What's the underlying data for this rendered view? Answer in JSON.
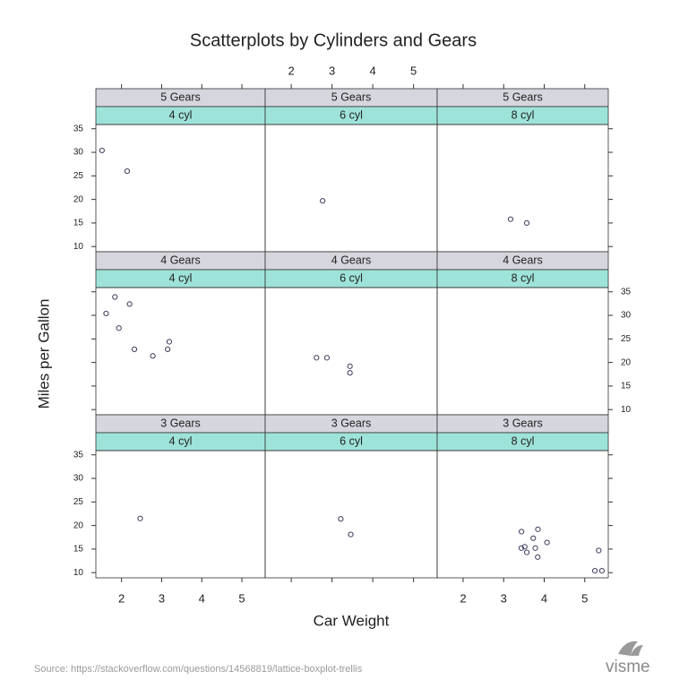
{
  "chart_data": {
    "type": "scatter",
    "title": "Scatterplots by Cylinders and Gears",
    "xlabel": "Car Weight",
    "ylabel": "Miles per Gallon",
    "xlim": [
      1.36,
      5.58
    ],
    "ylim": [
      8.9,
      35.9
    ],
    "xticks": [
      2,
      3,
      4,
      5
    ],
    "yticks": [
      10,
      15,
      20,
      25,
      30,
      35
    ],
    "point_color": "#3c3c5c",
    "gear_strip_color": "#d6d6de",
    "cyl_strip_color": "#9ee3d9",
    "panels": [
      {
        "gear": "5 Gears",
        "cyl": "4 cyl",
        "x": [
          1.513,
          2.14
        ],
        "y": [
          30.4,
          26.0
        ]
      },
      {
        "gear": "5 Gears",
        "cyl": "6 cyl",
        "x": [
          2.77
        ],
        "y": [
          19.7
        ]
      },
      {
        "gear": "5 Gears",
        "cyl": "8 cyl",
        "x": [
          3.17,
          3.57
        ],
        "y": [
          15.8,
          15.0
        ]
      },
      {
        "gear": "4 Gears",
        "cyl": "4 cyl",
        "x": [
          2.32,
          3.19,
          3.15,
          2.2,
          1.615,
          1.835,
          1.935,
          2.78
        ],
        "y": [
          22.8,
          24.4,
          22.8,
          32.4,
          30.4,
          33.9,
          27.3,
          21.4
        ]
      },
      {
        "gear": "4 Gears",
        "cyl": "6 cyl",
        "x": [
          2.62,
          2.875,
          3.44,
          3.44
        ],
        "y": [
          21.0,
          21.0,
          19.2,
          17.8
        ]
      },
      {
        "gear": "4 Gears",
        "cyl": "8 cyl",
        "x": [],
        "y": []
      },
      {
        "gear": "3 Gears",
        "cyl": "4 cyl",
        "x": [
          2.465
        ],
        "y": [
          21.5
        ]
      },
      {
        "gear": "3 Gears",
        "cyl": "6 cyl",
        "x": [
          3.215,
          3.46
        ],
        "y": [
          21.4,
          18.1
        ]
      },
      {
        "gear": "3 Gears",
        "cyl": "8 cyl",
        "x": [
          3.44,
          3.57,
          4.07,
          3.73,
          3.78,
          5.25,
          5.424,
          5.345,
          3.52,
          3.435,
          3.84,
          3.845
        ],
        "y": [
          18.7,
          14.3,
          16.4,
          17.3,
          15.2,
          10.4,
          10.4,
          14.7,
          15.5,
          15.2,
          13.3,
          19.2
        ]
      }
    ],
    "source": "Source: https://stackoverflow.com/questions/14568819/lattice-boxplot-trellis",
    "logo": "visme"
  }
}
